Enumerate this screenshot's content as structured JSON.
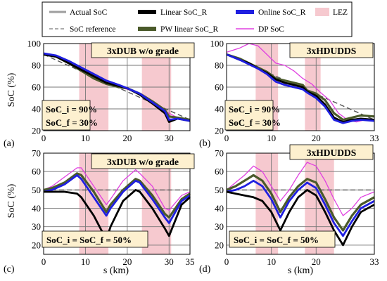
{
  "legend": {
    "items": [
      {
        "label": "Actual SoC",
        "color": "#9e9e9e",
        "style": "solid"
      },
      {
        "label": "Linear SoC_R",
        "color": "#000000",
        "style": "solid"
      },
      {
        "label": "Online SoC_R",
        "color": "#1f1fe0",
        "style": "solid"
      },
      {
        "label": "LEZ",
        "color": "#f6c9cf",
        "style": "patch"
      },
      {
        "label": "SoC reference",
        "color": "#7a7a7a",
        "style": "dashed"
      },
      {
        "label": "PW linear SoC_R",
        "color": "#4a5a2a",
        "style": "solid"
      },
      {
        "label": "DP SoC",
        "color": "#e040e0",
        "style": "solid"
      }
    ]
  },
  "colors": {
    "lez": "#f6c9cf",
    "linear": "#000000",
    "pw_linear": "#4a5a2a",
    "online": "#1f1fe0",
    "dp": "#e040e0",
    "reference": "#555555",
    "annotation_box": "#fdf0cf"
  },
  "axis_titles": {
    "ylabel": "SoC (%)",
    "xlabel": "s (km)"
  },
  "panels_text": {
    "a": {
      "letter": "(a)",
      "title": "3xDUB w/o grade",
      "ann1": "SoC_i = 90%",
      "ann2": "SoC_f = 30%"
    },
    "b": {
      "letter": "(b)",
      "title": "3xHDUDDS",
      "ann1": "SoC_i = 90%",
      "ann2": "SoC_f = 30%"
    },
    "c": {
      "letter": "(c)",
      "title": "3xDUB w/o grade",
      "ann1": "SoC_i = SoC_f = 50%"
    },
    "d": {
      "letter": "(d)",
      "title": "3xHDUDDS",
      "ann1": "SoC_i = SoC_f = 50%"
    }
  },
  "chart_data": [
    {
      "panel": "a",
      "type": "line",
      "title": "3xDUB w/o grade",
      "xlabel": "",
      "ylabel": "SoC (%)",
      "xlim": [
        0,
        35
      ],
      "ylim": [
        20,
        100
      ],
      "xticks": [
        0,
        10,
        20,
        30
      ],
      "yticks": [
        20,
        40,
        60,
        80,
        100
      ],
      "grid": true,
      "lez": [
        [
          8.5,
          15.5
        ],
        [
          23.5,
          30.5
        ]
      ],
      "series": [
        {
          "name": "SoC reference",
          "dashed": true,
          "x": [
            0,
            35
          ],
          "y": [
            90,
            30
          ]
        },
        {
          "name": "DP SoC",
          "x": [
            0,
            3,
            6,
            9,
            12,
            15,
            18,
            20,
            23,
            26,
            29,
            32,
            35
          ],
          "y": [
            91,
            89,
            84,
            77,
            70,
            64,
            60,
            58,
            54,
            46,
            38,
            32,
            29
          ]
        },
        {
          "name": "PW linear SoC_R",
          "x": [
            0,
            3,
            6,
            9,
            12,
            15,
            18,
            20,
            23,
            26,
            29,
            30,
            32,
            35
          ],
          "y": [
            90,
            88,
            82,
            75,
            68,
            63,
            60,
            59,
            54,
            47,
            39,
            33,
            32,
            30
          ]
        },
        {
          "name": "Linear SoC_R",
          "x": [
            0,
            3,
            6,
            9,
            12,
            15,
            18,
            20,
            23,
            26,
            29,
            30,
            32,
            35
          ],
          "y": [
            90,
            88,
            82,
            76,
            70,
            64,
            61,
            59,
            53,
            45,
            36,
            28,
            31,
            29
          ]
        },
        {
          "name": "Online SoC_R",
          "x": [
            0,
            3,
            6,
            9,
            12,
            15,
            18,
            20,
            23,
            26,
            29,
            30,
            32,
            35
          ],
          "y": [
            91,
            89,
            84,
            78,
            72,
            66,
            62,
            59,
            54,
            46,
            38,
            30,
            31,
            29
          ]
        }
      ]
    },
    {
      "panel": "b",
      "type": "line",
      "title": "3xHDUDDS",
      "xlabel": "",
      "ylabel": "",
      "xlim": [
        0,
        33
      ],
      "ylim": [
        20,
        100
      ],
      "xticks": [
        0,
        10,
        20,
        33
      ],
      "yticks": [
        20,
        40,
        60,
        80,
        100
      ],
      "grid": true,
      "lez": [
        [
          6.5,
          11.5
        ],
        [
          17.5,
          21
        ]
      ],
      "series": [
        {
          "name": "SoC reference",
          "dashed": true,
          "x": [
            0,
            33
          ],
          "y": [
            90,
            30
          ]
        },
        {
          "name": "DP SoC",
          "x": [
            0,
            3,
            5,
            7,
            9,
            11,
            13,
            15,
            17,
            19,
            21,
            23,
            25,
            27,
            29,
            31,
            33
          ],
          "y": [
            92,
            96,
            100,
            98,
            90,
            82,
            80,
            75,
            68,
            63,
            55,
            48,
            36,
            30,
            28,
            30,
            29
          ]
        },
        {
          "name": "PW linear SoC_R",
          "x": [
            0,
            3,
            5,
            7,
            9,
            11,
            13,
            15,
            17,
            18,
            20,
            22,
            24,
            26,
            28,
            30,
            33
          ],
          "y": [
            90,
            86,
            82,
            78,
            74,
            68,
            66,
            64,
            62,
            57,
            54,
            48,
            36,
            30,
            32,
            34,
            33
          ]
        },
        {
          "name": "Linear SoC_R",
          "x": [
            0,
            3,
            5,
            7,
            9,
            11,
            13,
            15,
            17,
            18,
            20,
            22,
            24,
            26,
            28,
            30,
            33
          ],
          "y": [
            90,
            85,
            82,
            77,
            73,
            67,
            64,
            62,
            60,
            56,
            52,
            44,
            32,
            28,
            30,
            31,
            30
          ]
        },
        {
          "name": "Online SoC_R",
          "x": [
            0,
            3,
            5,
            7,
            9,
            11,
            13,
            15,
            17,
            18,
            20,
            22,
            24,
            26,
            28,
            30,
            33
          ],
          "y": [
            90,
            85,
            81,
            77,
            72,
            65,
            62,
            60,
            58,
            55,
            50,
            42,
            30,
            27,
            29,
            30,
            29
          ]
        }
      ]
    },
    {
      "panel": "c",
      "type": "line",
      "title": "3xDUB w/o grade",
      "xlabel": "s (km)",
      "ylabel": "SoC (%)",
      "xlim": [
        0,
        35
      ],
      "ylim": [
        15,
        70
      ],
      "xticks": [
        0,
        10,
        20,
        30,
        35
      ],
      "yticks": [
        20,
        30,
        40,
        50,
        60,
        70
      ],
      "grid": true,
      "lez": [
        [
          8.5,
          15.5
        ],
        [
          23.5,
          30.5
        ]
      ],
      "series": [
        {
          "name": "SoC reference",
          "dashed": true,
          "x": [
            0,
            35
          ],
          "y": [
            50,
            50
          ]
        },
        {
          "name": "DP SoC",
          "x": [
            0,
            2,
            5,
            8,
            9,
            12,
            15,
            16,
            19,
            22,
            23,
            26,
            29,
            30,
            33,
            35
          ],
          "y": [
            50,
            52,
            57,
            62,
            62,
            52,
            42,
            45,
            55,
            61,
            59,
            52,
            40,
            39,
            47,
            49
          ]
        },
        {
          "name": "PW linear SoC_R",
          "x": [
            0,
            2,
            5,
            8,
            9,
            12,
            15,
            16,
            19,
            22,
            23,
            26,
            29,
            30,
            33,
            35
          ],
          "y": [
            50,
            51,
            54,
            59,
            58,
            49,
            38,
            42,
            50,
            56,
            55,
            47,
            37,
            35,
            45,
            48
          ]
        },
        {
          "name": "Online SoC_R",
          "x": [
            0,
            2,
            5,
            8,
            9,
            12,
            15,
            16,
            19,
            22,
            23,
            26,
            29,
            30,
            33,
            35
          ],
          "y": [
            49,
            50,
            53,
            58,
            56,
            46,
            36,
            40,
            49,
            55,
            54,
            45,
            35,
            32,
            44,
            47
          ]
        },
        {
          "name": "Linear SoC_R",
          "x": [
            0,
            2,
            5,
            8,
            9,
            12,
            15,
            16,
            19,
            22,
            23,
            26,
            29,
            30,
            33,
            35
          ],
          "y": [
            49,
            49,
            49,
            48,
            46,
            36,
            23,
            30,
            44,
            50,
            49,
            40,
            29,
            25,
            42,
            46
          ]
        }
      ]
    },
    {
      "panel": "d",
      "type": "line",
      "title": "3xHDUDDS",
      "xlabel": "s (km)",
      "ylabel": "",
      "xlim": [
        0,
        33
      ],
      "ylim": [
        15,
        70
      ],
      "xticks": [
        0,
        10,
        20,
        33
      ],
      "yticks": [
        20,
        30,
        40,
        50,
        60,
        70
      ],
      "grid": true,
      "lez": [
        [
          6.5,
          11.5
        ],
        [
          17.5,
          24
        ]
      ],
      "series": [
        {
          "name": "SoC reference",
          "dashed": true,
          "x": [
            0,
            33
          ],
          "y": [
            50,
            50
          ]
        },
        {
          "name": "DP SoC",
          "x": [
            0,
            2,
            4,
            6,
            8,
            10,
            12,
            14,
            16,
            18,
            20,
            22,
            24,
            26,
            28,
            30,
            33
          ],
          "y": [
            50,
            54,
            58,
            63,
            60,
            52,
            44,
            50,
            58,
            65,
            63,
            55,
            45,
            36,
            40,
            46,
            49
          ]
        },
        {
          "name": "PW linear SoC_R",
          "x": [
            0,
            2,
            4,
            6,
            8,
            10,
            12,
            14,
            16,
            18,
            20,
            22,
            24,
            26,
            28,
            30,
            33
          ],
          "y": [
            50,
            52,
            55,
            58,
            55,
            48,
            38,
            46,
            52,
            56,
            54,
            45,
            35,
            28,
            36,
            42,
            46
          ]
        },
        {
          "name": "Online SoC_R",
          "x": [
            0,
            2,
            4,
            6,
            8,
            10,
            12,
            14,
            16,
            18,
            20,
            22,
            24,
            26,
            28,
            30,
            33
          ],
          "y": [
            49,
            50,
            52,
            55,
            52,
            45,
            35,
            44,
            50,
            54,
            51,
            42,
            32,
            25,
            33,
            40,
            44
          ]
        },
        {
          "name": "Linear SoC_R",
          "x": [
            0,
            2,
            4,
            6,
            8,
            10,
            12,
            14,
            16,
            18,
            20,
            22,
            24,
            26,
            28,
            30,
            33
          ],
          "y": [
            49,
            48,
            47,
            46,
            44,
            38,
            28,
            38,
            46,
            50,
            47,
            38,
            28,
            20,
            30,
            38,
            42
          ]
        }
      ]
    }
  ]
}
